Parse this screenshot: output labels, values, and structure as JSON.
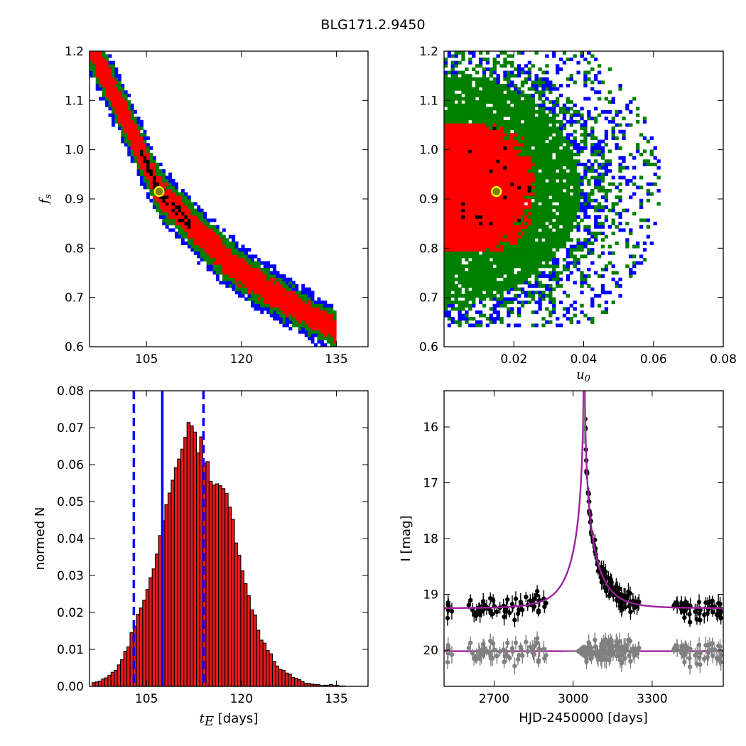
{
  "figure": {
    "title": "BLG171.2.9450"
  },
  "chart_data": [
    {
      "id": "fs_vs_tE",
      "type": "heatmap",
      "title": "",
      "ylabel_symbol": "f",
      "ylabel_sub": "s",
      "xlim": [
        96,
        140
      ],
      "ylim": [
        0.6,
        1.2
      ],
      "xticks": [
        105,
        120,
        135
      ],
      "xtick_labels": [
        "105",
        "120",
        "135"
      ],
      "yticks": [
        0.6,
        0.7,
        0.8,
        0.9,
        1.0,
        1.1,
        1.2
      ],
      "ytick_labels": [
        "0.6",
        "0.7",
        "0.8",
        "0.9",
        "1.0",
        "1.1",
        "1.2"
      ],
      "levels": [
        "blue",
        "green",
        "red",
        "black"
      ],
      "colors": {
        "blue": "#0000ff",
        "green": "#007f00",
        "red": "#ff0000",
        "black": "#000000"
      },
      "ridge": [
        [
          96,
          1.22
        ],
        [
          101.5,
          1.07
        ],
        [
          107,
          0.915
        ],
        [
          113,
          0.835
        ],
        [
          119,
          0.76
        ],
        [
          126,
          0.7
        ],
        [
          134,
          0.64
        ]
      ],
      "best_fit": {
        "tE": 107.0,
        "fs": 0.915
      }
    },
    {
      "id": "fs_vs_u0",
      "type": "heatmap",
      "xlabel_symbol": "u",
      "xlabel_sub": "0",
      "xlim": [
        0.0,
        0.08
      ],
      "ylim": [
        0.6,
        1.2
      ],
      "xticks": [
        0.02,
        0.04,
        0.06,
        0.08
      ],
      "xtick_labels": [
        "0.02",
        "0.04",
        "0.06",
        "0.08"
      ],
      "yticks": [
        0.6,
        0.7,
        0.8,
        0.9,
        1.0,
        1.1,
        1.2
      ],
      "ytick_labels": [
        "0.6",
        "0.7",
        "0.8",
        "0.9",
        "1.0",
        "1.1",
        "1.2"
      ],
      "levels": [
        "blue",
        "green",
        "red",
        "black"
      ],
      "best_fit": {
        "u0": 0.015,
        "fs": 0.915
      }
    },
    {
      "id": "tE_histogram",
      "type": "bar",
      "xlabel_symbol": "t",
      "xlabel_sub": "E",
      "xlabel_suffix": " [days]",
      "ylabel": "normed N",
      "xlim": [
        96,
        140
      ],
      "ylim": [
        0.0,
        0.08
      ],
      "xticks": [
        105,
        120,
        135
      ],
      "xtick_labels": [
        "105",
        "120",
        "135"
      ],
      "yticks": [
        0.0,
        0.01,
        0.02,
        0.03,
        0.04,
        0.05,
        0.06,
        0.07,
        0.08
      ],
      "ytick_labels": [
        "0.00",
        "0.01",
        "0.02",
        "0.03",
        "0.04",
        "0.05",
        "0.06",
        "0.07",
        "0.08"
      ],
      "bin_start": 96.4,
      "bin_width": 0.5,
      "values": [
        0.001,
        0.0012,
        0.0014,
        0.002,
        0.0023,
        0.003,
        0.0038,
        0.0043,
        0.0058,
        0.0072,
        0.0095,
        0.0107,
        0.0145,
        0.0163,
        0.0195,
        0.0212,
        0.0233,
        0.0262,
        0.0294,
        0.0318,
        0.0358,
        0.0408,
        0.0448,
        0.0492,
        0.0523,
        0.0558,
        0.0592,
        0.0615,
        0.0642,
        0.0674,
        0.0714,
        0.0705,
        0.0688,
        0.0632,
        0.0675,
        0.0603,
        0.0608,
        0.0555,
        0.0545,
        0.0548,
        0.0543,
        0.0535,
        0.0522,
        0.0485,
        0.0452,
        0.0388,
        0.0355,
        0.0313,
        0.0278,
        0.0245,
        0.0207,
        0.0193,
        0.0152,
        0.0125,
        0.0117,
        0.0097,
        0.0088,
        0.0068,
        0.0055,
        0.0046,
        0.0043,
        0.0036,
        0.0033,
        0.0024,
        0.0022,
        0.0018,
        0.0013,
        0.0008,
        0.0008,
        0.0006,
        0.0005,
        0.0005,
        0.0002,
        0.0003,
        0.0003,
        0.0005,
        0.0002,
        0.0003,
        0.0001,
        0.0001
      ],
      "bar_color": "#e41a1c",
      "median": 107.5,
      "lower": 103.0,
      "upper": 114.0,
      "line_color": "#0000ff"
    },
    {
      "id": "lightcurve",
      "type": "scatter",
      "xlabel": "HJD-2450000 [days]",
      "ylabel": "I [mag]",
      "xlim": [
        2510,
        3570
      ],
      "ylim": [
        20.65,
        15.35
      ],
      "xticks": [
        2700,
        3000,
        3300
      ],
      "xtick_labels": [
        "2700",
        "3000",
        "3300"
      ],
      "yticks": [
        16,
        17,
        18,
        19,
        20
      ],
      "ytick_labels": [
        "16",
        "17",
        "18",
        "19",
        "20"
      ],
      "model": {
        "t0": 3042,
        "tE": 107,
        "u0": 0.015,
        "fs": 0.915,
        "I_base": 19.25
      },
      "residual_offset": 20.02,
      "data_color": "#000000",
      "residual_color": "#808080",
      "model_color": "#a020a0",
      "segments": [
        [
          2515,
          2540,
          6
        ],
        [
          2600,
          2900,
          60
        ],
        [
          3045,
          3190,
          80
        ],
        [
          3190,
          3260,
          18
        ],
        [
          3380,
          3568,
          50
        ]
      ]
    }
  ]
}
